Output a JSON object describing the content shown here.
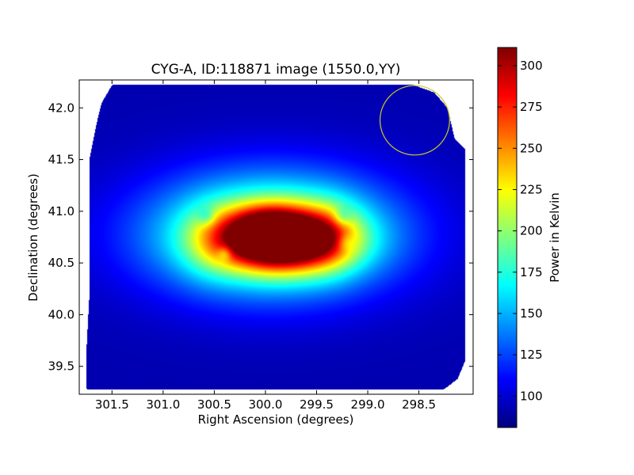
{
  "chart_data": {
    "type": "heatmap",
    "title": "CYG-A, ID:118871 image (1550.0,YY)",
    "xlabel": "Right Ascension (degrees)",
    "ylabel": "Declination (degrees)",
    "xlim": [
      301.82,
      297.97
    ],
    "ylim": [
      39.23,
      42.27
    ],
    "x_ticks": [
      {
        "value": 301.5,
        "label": "301.5"
      },
      {
        "value": 301.0,
        "label": "301.0"
      },
      {
        "value": 300.5,
        "label": "300.5"
      },
      {
        "value": 300.0,
        "label": "300.0"
      },
      {
        "value": 299.5,
        "label": "299.5"
      },
      {
        "value": 299.0,
        "label": "299.0"
      },
      {
        "value": 298.5,
        "label": "298.5"
      }
    ],
    "y_ticks": [
      {
        "value": 39.5,
        "label": "39.5"
      },
      {
        "value": 40.0,
        "label": "40.0"
      },
      {
        "value": 40.5,
        "label": "40.5"
      },
      {
        "value": 41.0,
        "label": "41.0"
      },
      {
        "value": 41.5,
        "label": "41.5"
      },
      {
        "value": 42.0,
        "label": "42.0"
      }
    ],
    "colormap": "jet",
    "colorbar": {
      "label": "Power in Kelvin",
      "min": 81,
      "max": 311,
      "ticks": [
        {
          "value": 100,
          "label": "100"
        },
        {
          "value": 125,
          "label": "125"
        },
        {
          "value": 150,
          "label": "150"
        },
        {
          "value": 175,
          "label": "175"
        },
        {
          "value": 200,
          "label": "200"
        },
        {
          "value": 225,
          "label": "225"
        },
        {
          "value": 250,
          "label": "250"
        },
        {
          "value": 275,
          "label": "275"
        },
        {
          "value": 300,
          "label": "300"
        }
      ]
    },
    "background_level": 92,
    "coverage_outline": [
      [
        301.75,
        39.28
      ],
      [
        301.75,
        39.65
      ],
      [
        301.72,
        40.2
      ],
      [
        301.72,
        41.5
      ],
      [
        301.65,
        41.85
      ],
      [
        301.6,
        42.05
      ],
      [
        301.5,
        42.22
      ],
      [
        298.55,
        42.22
      ],
      [
        298.35,
        42.15
      ],
      [
        298.22,
        42.0
      ],
      [
        298.15,
        41.7
      ],
      [
        298.05,
        41.6
      ],
      [
        298.05,
        39.55
      ],
      [
        298.12,
        39.38
      ],
      [
        298.25,
        39.28
      ]
    ],
    "sources": [
      {
        "x": 299.85,
        "y": 40.73,
        "peak": 311,
        "sx": 0.42,
        "sy": 0.2
      },
      {
        "x": 300.0,
        "y": 40.85,
        "peak": 40,
        "sx": 0.25,
        "sy": 0.15
      },
      {
        "x": 299.95,
        "y": 40.78,
        "peak": 120,
        "sx": 0.85,
        "sy": 0.42
      },
      {
        "x": 299.35,
        "y": 40.75,
        "peak": 25,
        "sx": 0.2,
        "sy": 0.25
      },
      {
        "x": 300.55,
        "y": 40.7,
        "peak": 20,
        "sx": 0.2,
        "sy": 0.25
      }
    ],
    "dips": [
      {
        "x": 300.4,
        "y": 40.6,
        "depth": 35,
        "s": 0.05
      },
      {
        "x": 300.58,
        "y": 40.95,
        "depth": 30,
        "s": 0.06
      },
      {
        "x": 299.25,
        "y": 40.95,
        "depth": 30,
        "s": 0.06
      },
      {
        "x": 299.22,
        "y": 40.7,
        "depth": 25,
        "s": 0.06
      }
    ],
    "annotation_circle": {
      "x": 298.54,
      "y": 41.88,
      "r": 0.34,
      "color": "#cccc22"
    }
  }
}
